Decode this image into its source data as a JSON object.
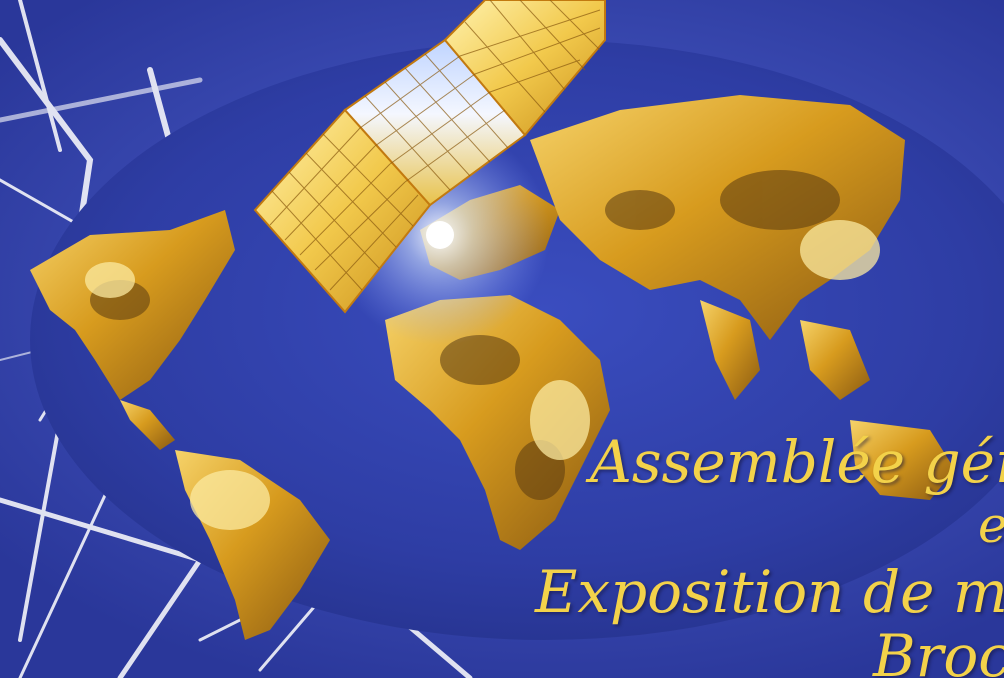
{
  "poster": {
    "lines": [
      "Assemblée géné",
      "e",
      "Exposition de mat",
      "Broc"
    ]
  },
  "colors": {
    "background": "#3d4fb8",
    "ocean_ellipse": "#2f3fa6",
    "land_gold": "#e0a826",
    "headline_text": "#f3d24a",
    "panel_gold": "#f2c94c"
  },
  "icons": [
    "satellite-icon",
    "world-map-icon"
  ]
}
